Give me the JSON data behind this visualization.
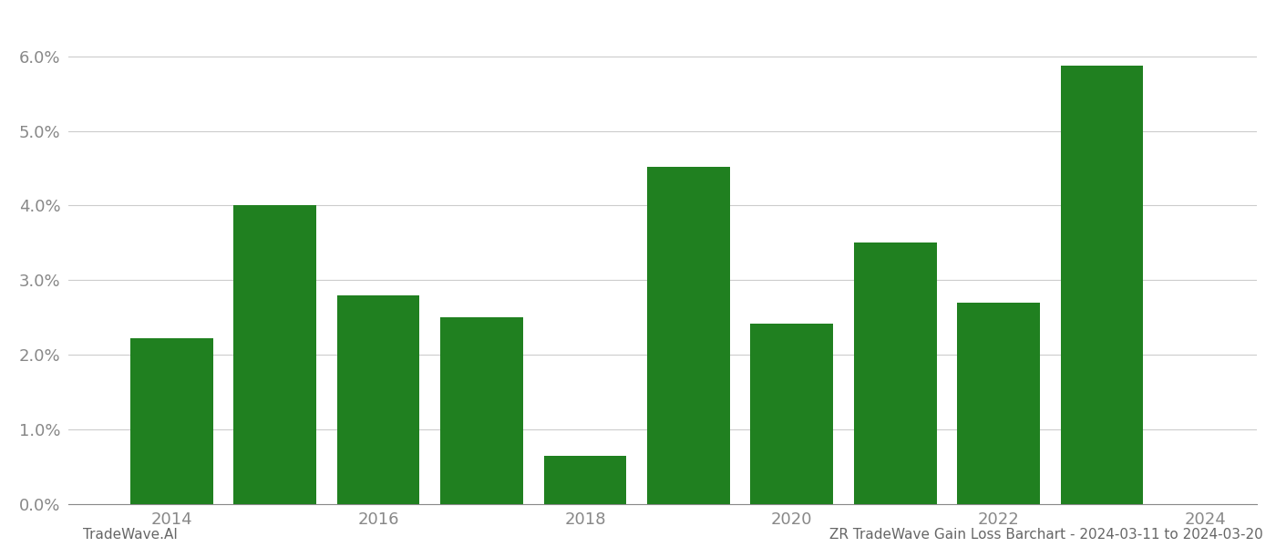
{
  "years": [
    2014,
    2015,
    2016,
    2017,
    2018,
    2019,
    2020,
    2021,
    2022,
    2023
  ],
  "values": [
    0.0222,
    0.04,
    0.028,
    0.025,
    0.0065,
    0.0452,
    0.0242,
    0.035,
    0.027,
    0.0587
  ],
  "bar_color": "#208020",
  "background_color": "#ffffff",
  "grid_color": "#cccccc",
  "axis_color": "#888888",
  "ylim": [
    0,
    0.065
  ],
  "yticks": [
    0.0,
    0.01,
    0.02,
    0.03,
    0.04,
    0.05,
    0.06
  ],
  "xtick_labels": [
    "2014",
    "2016",
    "2018",
    "2020",
    "2022",
    "2024"
  ],
  "xtick_positions": [
    2014,
    2016,
    2018,
    2020,
    2022,
    2024
  ],
  "footer_left": "TradeWave.AI",
  "footer_right": "ZR TradeWave Gain Loss Barchart - 2024-03-11 to 2024-03-20",
  "bar_width": 0.8,
  "tick_fontsize": 13,
  "footer_fontsize": 11,
  "xlim_left": 2013.0,
  "xlim_right": 2024.5
}
